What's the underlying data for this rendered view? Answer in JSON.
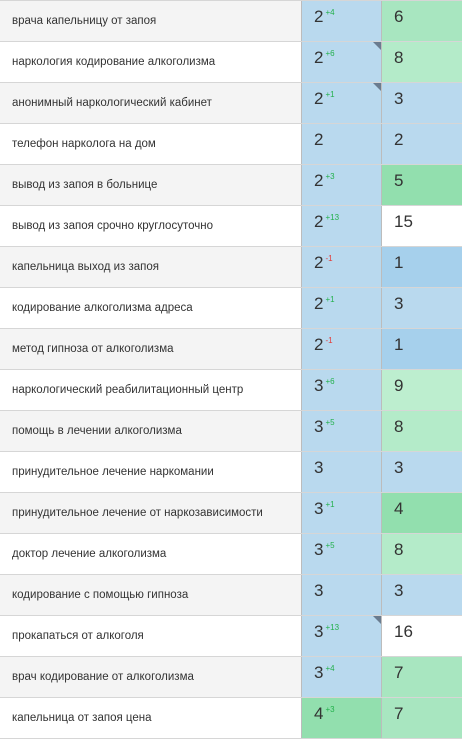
{
  "colors": {
    "blue_light": "#b9d9ee",
    "blue_mid": "#a6d0ec",
    "green_strong": "#92dfae",
    "green_mid": "#a8e6c0",
    "green_light": "#bdeecf",
    "white": "#ffffff",
    "delta_up": "#22b04b",
    "delta_down": "#e53935",
    "corner_marker": "#6a7c8f"
  },
  "rows": [
    {
      "keyword": "врача капельницу от запоя",
      "position": "2",
      "delta": "+4",
      "delta_dir": "up",
      "prev": "6",
      "pos_color": "#b9d9ee",
      "prev_color": "#a8e6c0",
      "corner": false
    },
    {
      "keyword": "наркология кодирование алкоголизма",
      "position": "2",
      "delta": "+6",
      "delta_dir": "up",
      "prev": "8",
      "pos_color": "#b9d9ee",
      "prev_color": "#b4ebc9",
      "corner": true
    },
    {
      "keyword": "анонимный наркологический кабинет",
      "position": "2",
      "delta": "+1",
      "delta_dir": "up",
      "prev": "3",
      "pos_color": "#b9d9ee",
      "prev_color": "#b9d9ee",
      "corner": true
    },
    {
      "keyword": "телефон нарколога на дом",
      "position": "2",
      "delta": "",
      "delta_dir": "",
      "prev": "2",
      "pos_color": "#b9d9ee",
      "prev_color": "#b9d9ee",
      "corner": false
    },
    {
      "keyword": "вывод из запоя в больнице",
      "position": "2",
      "delta": "+3",
      "delta_dir": "up",
      "prev": "5",
      "pos_color": "#b9d9ee",
      "prev_color": "#92dfae",
      "corner": false
    },
    {
      "keyword": "вывод из запоя срочно круглосуточно",
      "position": "2",
      "delta": "+13",
      "delta_dir": "up",
      "prev": "15",
      "pos_color": "#b9d9ee",
      "prev_color": "#ffffff",
      "corner": false
    },
    {
      "keyword": "капельница выход из запоя",
      "position": "2",
      "delta": "-1",
      "delta_dir": "down",
      "prev": "1",
      "pos_color": "#b9d9ee",
      "prev_color": "#a6d0ec",
      "corner": false
    },
    {
      "keyword": "кодирование алкоголизма адреса",
      "position": "2",
      "delta": "+1",
      "delta_dir": "up",
      "prev": "3",
      "pos_color": "#b9d9ee",
      "prev_color": "#b9d9ee",
      "corner": false
    },
    {
      "keyword": "метод гипноза от алкоголизма",
      "position": "2",
      "delta": "-1",
      "delta_dir": "down",
      "prev": "1",
      "pos_color": "#b9d9ee",
      "prev_color": "#a6d0ec",
      "corner": false
    },
    {
      "keyword": "наркологический реабилитационный центр",
      "position": "3",
      "delta": "+6",
      "delta_dir": "up",
      "prev": "9",
      "pos_color": "#b9d9ee",
      "prev_color": "#bdeecf",
      "corner": false
    },
    {
      "keyword": "помощь в лечении алкоголизма",
      "position": "3",
      "delta": "+5",
      "delta_dir": "up",
      "prev": "8",
      "pos_color": "#b9d9ee",
      "prev_color": "#b4ebc9",
      "corner": false
    },
    {
      "keyword": "принудительное лечение наркомании",
      "position": "3",
      "delta": "",
      "delta_dir": "",
      "prev": "3",
      "pos_color": "#b9d9ee",
      "prev_color": "#b9d9ee",
      "corner": false
    },
    {
      "keyword": "принудительное лечение от наркозависимости",
      "position": "3",
      "delta": "+1",
      "delta_dir": "up",
      "prev": "4",
      "pos_color": "#b9d9ee",
      "prev_color": "#92dfae",
      "corner": false
    },
    {
      "keyword": "доктор лечение алкоголизма",
      "position": "3",
      "delta": "+5",
      "delta_dir": "up",
      "prev": "8",
      "pos_color": "#b9d9ee",
      "prev_color": "#b4ebc9",
      "corner": false
    },
    {
      "keyword": "кодирование с помощью гипноза",
      "position": "3",
      "delta": "",
      "delta_dir": "",
      "prev": "3",
      "pos_color": "#b9d9ee",
      "prev_color": "#b9d9ee",
      "corner": false
    },
    {
      "keyword": "прокапаться от алкоголя",
      "position": "3",
      "delta": "+13",
      "delta_dir": "up",
      "prev": "16",
      "pos_color": "#b9d9ee",
      "prev_color": "#ffffff",
      "corner": true
    },
    {
      "keyword": "врач кодирование от алкоголизма",
      "position": "3",
      "delta": "+4",
      "delta_dir": "up",
      "prev": "7",
      "pos_color": "#b9d9ee",
      "prev_color": "#a8e6c0",
      "corner": false
    },
    {
      "keyword": "капельница от запоя цена",
      "position": "4",
      "delta": "+3",
      "delta_dir": "up",
      "prev": "7",
      "pos_color": "#92dfae",
      "prev_color": "#a8e6c0",
      "corner": false
    }
  ]
}
